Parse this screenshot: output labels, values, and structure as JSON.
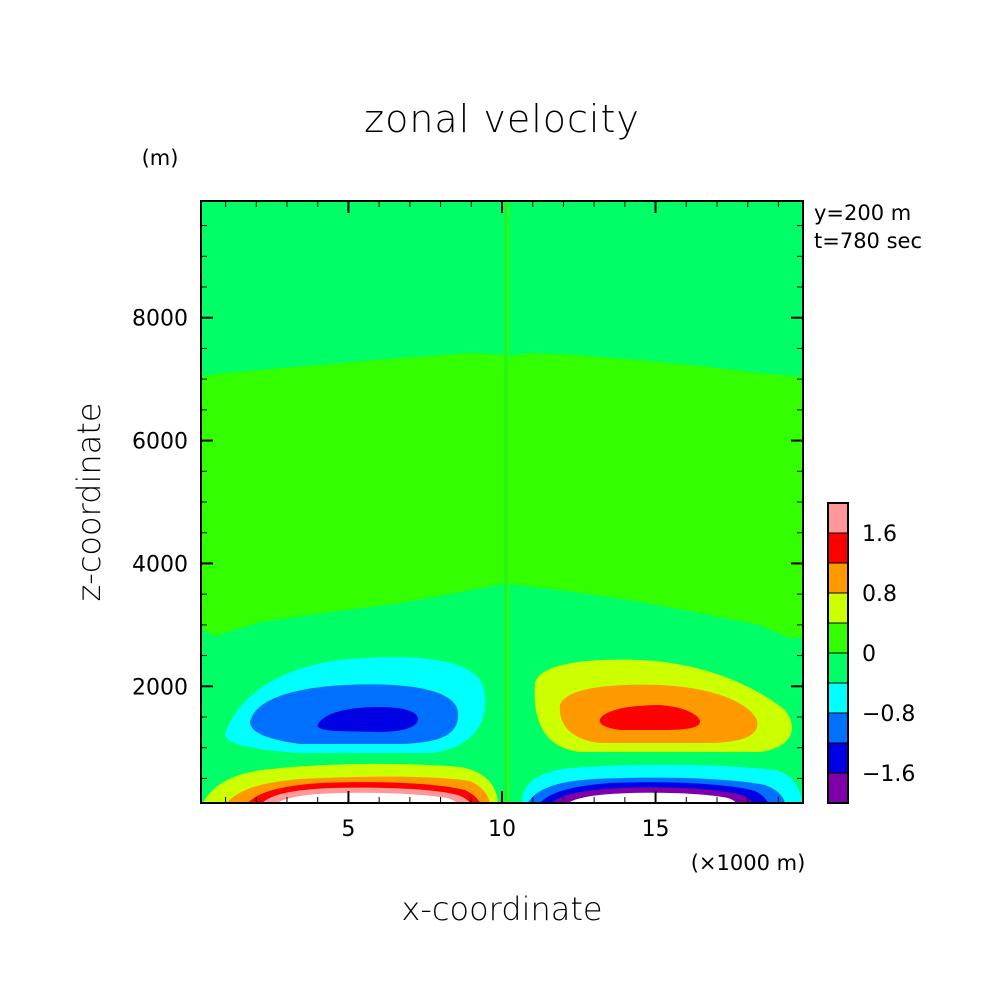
{
  "chart_data": {
    "type": "heatmap",
    "title": "zonal velocity",
    "xlabel": "x-coordinate",
    "ylabel": "z-coordinate",
    "x_units": "(×1000 m)",
    "y_units": "(m)",
    "annotations": [
      "y=200 m",
      "t=780 sec"
    ],
    "xlim": [
      0.2,
      19.8
    ],
    "ylim": [
      100,
      9900
    ],
    "x_ticks": [
      5,
      10,
      15
    ],
    "y_ticks": [
      2000,
      4000,
      6000,
      8000
    ],
    "grid": false,
    "colorbar": {
      "levels": [
        -2.0,
        -1.6,
        -1.2,
        -0.8,
        -0.4,
        0,
        0.4,
        0.8,
        1.2,
        1.6,
        2.0
      ],
      "tick_labels": [
        "-1.6",
        "-0.8",
        "0",
        "0.8",
        "1.6"
      ],
      "tick_values": [
        -1.6,
        -0.8,
        0,
        0.8,
        1.6
      ],
      "colors": [
        "#7f00a9",
        "#0000e5",
        "#0070ff",
        "#00ffff",
        "#00ff66",
        "#33ff00",
        "#ccff00",
        "#ff9900",
        "#ff0000",
        "#ff9999"
      ]
    },
    "features": [
      {
        "label": "negative core, west lobe",
        "x_center": 5.6,
        "z_center": 1400,
        "min_value": -1.6
      },
      {
        "label": "positive core, east lobe",
        "x_center": 14.6,
        "z_center": 1400,
        "max_value": 1.6
      },
      {
        "label": "positive surface jet",
        "x_range": [
          1,
          9.5
        ],
        "z_max": 500,
        "max_value": 2.0
      },
      {
        "label": "negative surface jet",
        "x_range": [
          10.7,
          19
        ],
        "z_max": 500,
        "min_value": -2.0
      }
    ]
  }
}
